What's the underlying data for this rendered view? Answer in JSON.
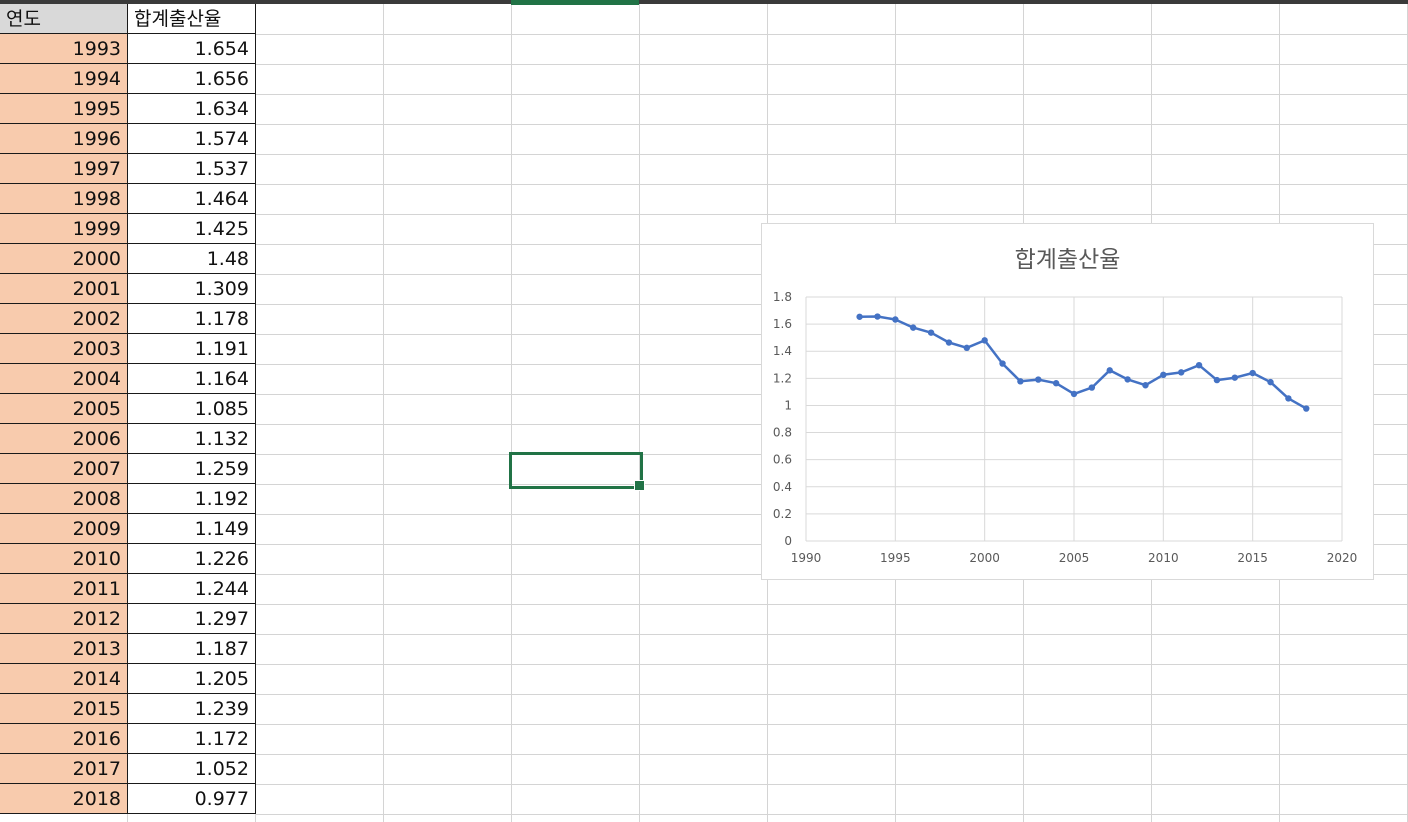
{
  "sheet": {
    "headers": [
      "연도",
      "합계출산율"
    ],
    "rows": [
      {
        "year": "1993",
        "value": "1.654"
      },
      {
        "year": "1994",
        "value": "1.656"
      },
      {
        "year": "1995",
        "value": "1.634"
      },
      {
        "year": "1996",
        "value": "1.574"
      },
      {
        "year": "1997",
        "value": "1.537"
      },
      {
        "year": "1998",
        "value": "1.464"
      },
      {
        "year": "1999",
        "value": "1.425"
      },
      {
        "year": "2000",
        "value": "1.48"
      },
      {
        "year": "2001",
        "value": "1.309"
      },
      {
        "year": "2002",
        "value": "1.178"
      },
      {
        "year": "2003",
        "value": "1.191"
      },
      {
        "year": "2004",
        "value": "1.164"
      },
      {
        "year": "2005",
        "value": "1.085"
      },
      {
        "year": "2006",
        "value": "1.132"
      },
      {
        "year": "2007",
        "value": "1.259"
      },
      {
        "year": "2008",
        "value": "1.192"
      },
      {
        "year": "2009",
        "value": "1.149"
      },
      {
        "year": "2010",
        "value": "1.226"
      },
      {
        "year": "2011",
        "value": "1.244"
      },
      {
        "year": "2012",
        "value": "1.297"
      },
      {
        "year": "2013",
        "value": "1.187"
      },
      {
        "year": "2014",
        "value": "1.205"
      },
      {
        "year": "2015",
        "value": "1.239"
      },
      {
        "year": "2016",
        "value": "1.172"
      },
      {
        "year": "2017",
        "value": "1.052"
      },
      {
        "year": "2018",
        "value": "0.977"
      }
    ]
  },
  "colors": {
    "year_fill": "#f8cbad",
    "header_fill": "#d9d9d9",
    "selection": "#217346",
    "series_line": "#4472c4",
    "gridline": "#d9d9d9"
  },
  "chart_data": {
    "type": "scatter",
    "title": "합계출산율",
    "xlim": [
      1990,
      2020
    ],
    "ylim": [
      0,
      1.8
    ],
    "x_ticks": [
      1990,
      1995,
      2000,
      2005,
      2010,
      2015,
      2020
    ],
    "y_ticks": [
      0,
      0.2,
      0.4,
      0.6,
      0.8,
      1,
      1.2,
      1.4,
      1.6,
      1.8
    ],
    "x_tick_labels": [
      "1990",
      "1995",
      "2000",
      "2005",
      "2010",
      "2015",
      "2020"
    ],
    "y_tick_labels": [
      "0",
      "0.2",
      "0.4",
      "0.6",
      "0.8",
      "1",
      "1.2",
      "1.4",
      "1.6",
      "1.8"
    ],
    "grid": true,
    "series": [
      {
        "x": [
          1993,
          1994,
          1995,
          1996,
          1997,
          1998,
          1999,
          2000,
          2001,
          2002,
          2003,
          2004,
          2005,
          2006,
          2007,
          2008,
          2009,
          2010,
          2011,
          2012,
          2013,
          2014,
          2015,
          2016,
          2017,
          2018
        ],
        "y": [
          1.654,
          1.656,
          1.634,
          1.574,
          1.537,
          1.464,
          1.425,
          1.48,
          1.309,
          1.178,
          1.191,
          1.164,
          1.085,
          1.132,
          1.259,
          1.192,
          1.149,
          1.226,
          1.244,
          1.297,
          1.187,
          1.205,
          1.239,
          1.172,
          1.052,
          0.977
        ]
      }
    ]
  }
}
